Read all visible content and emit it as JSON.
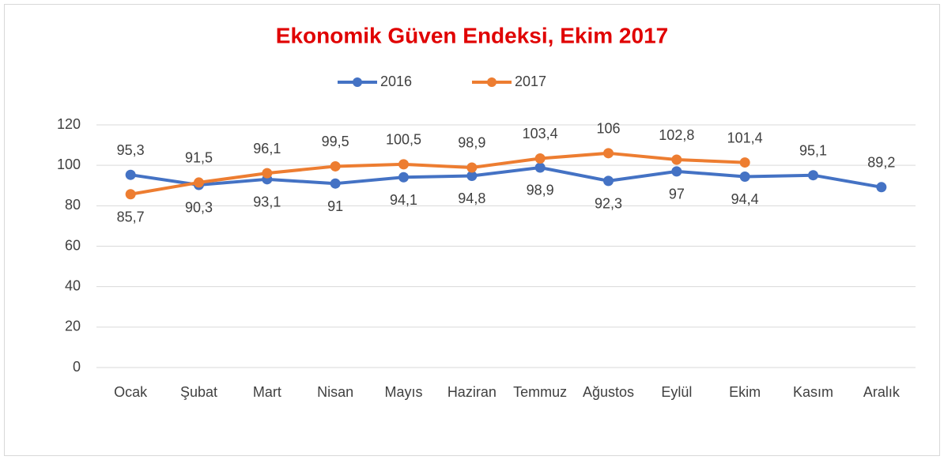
{
  "chart_data": {
    "type": "line",
    "title": "Ekonomik Güven Endeksi, Ekim 2017",
    "categories": [
      "Ocak",
      "Şubat",
      "Mart",
      "Nisan",
      "Mayıs",
      "Haziran",
      "Temmuz",
      "Ağustos",
      "Eylül",
      "Ekim",
      "Kasım",
      "Aralık"
    ],
    "series": [
      {
        "name": "2016",
        "color": "#4472c4",
        "values": [
          95.3,
          90.3,
          93.1,
          91,
          94.1,
          94.8,
          98.9,
          92.3,
          97,
          94.4,
          95.1,
          89.2
        ],
        "value_labels": [
          "95,3",
          "90,3",
          "93,1",
          "91",
          "94,1",
          "94,8",
          "98,9",
          "92,3",
          "97",
          "94,4",
          "95,1",
          "89,2"
        ]
      },
      {
        "name": "2017",
        "color": "#ed7d31",
        "values": [
          85.7,
          91.5,
          96.1,
          99.5,
          100.5,
          98.9,
          103.4,
          106,
          102.8,
          101.4,
          null,
          null
        ],
        "value_labels": [
          "85,7",
          "91,5",
          "96,1",
          "99,5",
          "100,5",
          "98,9",
          "103,4",
          "106",
          "102,8",
          "101,4",
          null,
          null
        ]
      }
    ],
    "ylim": [
      0,
      120
    ],
    "yticks": [
      0,
      20,
      40,
      60,
      80,
      100,
      120
    ],
    "grid": true,
    "legend": "top"
  }
}
